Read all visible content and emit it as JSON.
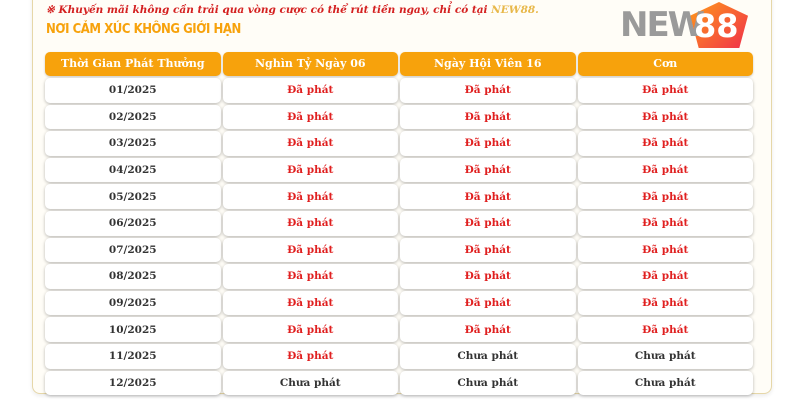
{
  "note": {
    "symbol": "※",
    "text": "Khuyến mãi không cần trải qua vòng cược có thể rút tiền ngay, chỉ có tại",
    "brand": "NEW88."
  },
  "watermark": {
    "logo_text": "NEW88",
    "logo_new": "NEW",
    "logo_88": "88",
    "slogan": "NƠI CẢM XÚC KHÔNG GIỚI HẠN"
  },
  "colors": {
    "header": "#f7a20c",
    "issued": "#e02020",
    "pending": "#333333"
  },
  "table": {
    "headers": [
      "Thời Gian Phát Thưởng",
      "Nghìn Tỷ Ngày 06",
      "Ngày Hội Viên 16",
      "Cơn"
    ],
    "rows": [
      [
        "01/2025",
        "Đã phát",
        "Đã phát",
        "Đã phát"
      ],
      [
        "02/2025",
        "Đã phát",
        "Đã phát",
        "Đã phát"
      ],
      [
        "03/2025",
        "Đã phát",
        "Đã phát",
        "Đã phát"
      ],
      [
        "04/2025",
        "Đã phát",
        "Đã phát",
        "Đã phát"
      ],
      [
        "05/2025",
        "Đã phát",
        "Đã phát",
        "Đã phát"
      ],
      [
        "06/2025",
        "Đã phát",
        "Đã phát",
        "Đã phát"
      ],
      [
        "07/2025",
        "Đã phát",
        "Đã phát",
        "Đã phát"
      ],
      [
        "08/2025",
        "Đã phát",
        "Đã phát",
        "Đã phát"
      ],
      [
        "09/2025",
        "Đã phát",
        "Đã phát",
        "Đã phát"
      ],
      [
        "10/2025",
        "Đã phát",
        "Đã phát",
        "Đã phát"
      ],
      [
        "11/2025",
        "Đã phát",
        "Chưa phát",
        "Chưa phát"
      ],
      [
        "12/2025",
        "Chưa phát",
        "Chưa phát",
        "Chưa phát"
      ]
    ]
  }
}
